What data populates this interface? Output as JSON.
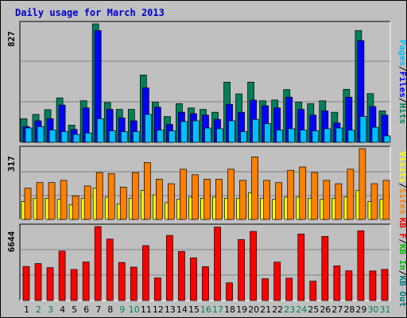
{
  "title": "Daily usage for March 2013",
  "colors": {
    "hits": "#00805c",
    "files": "#0000ff",
    "pages": "#00c0ff",
    "visits": "#ffff00",
    "sites": "#ff8000",
    "kbin": "#00c000",
    "kbout": "#008080",
    "kbf": "#ff0000",
    "plot_bg": "#c0c0c0",
    "grid": "#808080"
  },
  "legends": {
    "panel1": [
      "Pages",
      "/",
      "Files",
      "/",
      "Hits"
    ],
    "panel2": [
      "Visits",
      "/",
      "Sites"
    ],
    "panel3": [
      "KB F",
      "/",
      "KB In",
      "/",
      "KB Out"
    ]
  },
  "days": [
    "1",
    "2",
    "3",
    "4",
    "5",
    "6",
    "7",
    "8",
    "9",
    "10",
    "11",
    "12",
    "13",
    "14",
    "15",
    "16",
    "17",
    "18",
    "19",
    "20",
    "21",
    "22",
    "23",
    "24",
    "25",
    "26",
    "27",
    "28",
    "29",
    "30",
    "31"
  ],
  "weekend_days": [
    2,
    3,
    9,
    10,
    16,
    17,
    23,
    24,
    30,
    31
  ],
  "chart_data": [
    {
      "type": "bar",
      "panel": "hits-files-pages",
      "ymax_label": "827",
      "ylim": [
        0,
        827
      ],
      "series": [
        {
          "name": "Hits",
          "values": [
            165,
            195,
            228,
            310,
            120,
            290,
            827,
            278,
            230,
            230,
            470,
            280,
            180,
            270,
            240,
            230,
            210,
            420,
            338,
            420,
            290,
            295,
            368,
            280,
            270,
            290,
            210,
            370,
            780,
            340,
            220
          ]
        },
        {
          "name": "Files",
          "values": [
            110,
            150,
            165,
            260,
            90,
            240,
            780,
            230,
            170,
            150,
            380,
            245,
            125,
            210,
            200,
            190,
            160,
            265,
            210,
            295,
            255,
            240,
            315,
            230,
            190,
            220,
            135,
            315,
            710,
            250,
            190
          ]
        },
        {
          "name": "Pages",
          "values": [
            100,
            110,
            85,
            75,
            55,
            65,
            165,
            80,
            75,
            75,
            195,
            85,
            80,
            145,
            150,
            100,
            95,
            150,
            75,
            160,
            130,
            85,
            95,
            85,
            80,
            95,
            100,
            85,
            180,
            105,
            45
          ]
        }
      ]
    },
    {
      "type": "bar",
      "panel": "visits-sites",
      "ymax_label": "317",
      "ylim": [
        0,
        317
      ],
      "series": [
        {
          "name": "Visits",
          "values": [
            80,
            95,
            95,
            90,
            65,
            95,
            140,
            100,
            70,
            95,
            130,
            110,
            75,
            90,
            100,
            95,
            100,
            95,
            95,
            120,
            95,
            90,
            100,
            100,
            95,
            90,
            95,
            100,
            130,
            80,
            90
          ]
        },
        {
          "name": "Sites",
          "values": [
            140,
            165,
            165,
            175,
            105,
            150,
            210,
            205,
            145,
            210,
            255,
            180,
            160,
            225,
            200,
            180,
            180,
            225,
            175,
            280,
            175,
            165,
            220,
            235,
            210,
            175,
            160,
            225,
            317,
            160,
            175
          ]
        }
      ]
    },
    {
      "type": "bar",
      "panel": "kb",
      "ymax_label": "6644",
      "ylim": [
        0,
        6644
      ],
      "series": [
        {
          "name": "KB F",
          "values": [
            3060,
            3320,
            2950,
            4440,
            2790,
            3460,
            6644,
            5520,
            3420,
            3000,
            4930,
            2030,
            5850,
            4410,
            3840,
            3040,
            6600,
            1590,
            5480,
            6210,
            1960,
            3450,
            2010,
            5980,
            1740,
            5760,
            3110,
            2670,
            6270,
            2660,
            2800
          ]
        }
      ]
    }
  ]
}
